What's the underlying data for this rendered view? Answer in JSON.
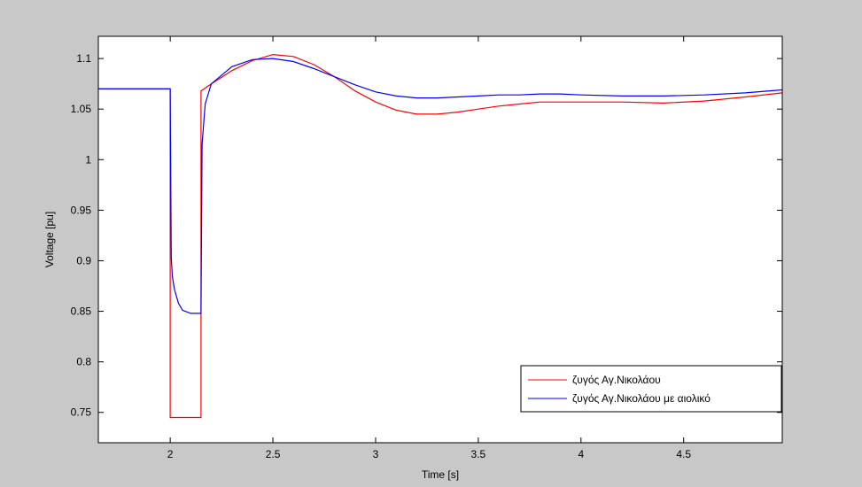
{
  "chart_data": {
    "type": "line",
    "title": "",
    "xlabel": "Time [s]",
    "ylabel": "Voltage [pu]",
    "xlim": [
      1.65,
      4.98
    ],
    "ylim": [
      0.72,
      1.122
    ],
    "x_ticks": [
      2,
      2.5,
      3,
      3.5,
      4,
      4.5
    ],
    "x_tick_labels": [
      "2",
      "2.5",
      "3",
      "3.5",
      "4",
      "4.5"
    ],
    "y_ticks": [
      0.75,
      0.8,
      0.85,
      0.9,
      0.95,
      1,
      1.05,
      1.1
    ],
    "y_tick_labels": [
      "0.75",
      "0.8",
      "0.85",
      "0.9",
      "0.95",
      "1",
      "1.05",
      "1.1"
    ],
    "grid": false,
    "legend_position": "bottom-right",
    "series": [
      {
        "name": "ζυγός Αγ.Νικολάου",
        "color": "#ff0000",
        "points": [
          [
            1.65,
            1.07
          ],
          [
            2.0,
            1.07
          ],
          [
            2.0,
            0.745
          ],
          [
            2.15,
            0.745
          ],
          [
            2.15,
            1.068
          ],
          [
            2.2,
            1.075
          ],
          [
            2.3,
            1.088
          ],
          [
            2.4,
            1.098
          ],
          [
            2.5,
            1.104
          ],
          [
            2.6,
            1.102
          ],
          [
            2.7,
            1.094
          ],
          [
            2.8,
            1.082
          ],
          [
            2.9,
            1.068
          ],
          [
            3.0,
            1.057
          ],
          [
            3.1,
            1.049
          ],
          [
            3.2,
            1.045
          ],
          [
            3.3,
            1.045
          ],
          [
            3.4,
            1.047
          ],
          [
            3.5,
            1.05
          ],
          [
            3.6,
            1.053
          ],
          [
            3.7,
            1.055
          ],
          [
            3.8,
            1.057
          ],
          [
            3.9,
            1.057
          ],
          [
            4.0,
            1.057
          ],
          [
            4.2,
            1.057
          ],
          [
            4.4,
            1.056
          ],
          [
            4.6,
            1.058
          ],
          [
            4.8,
            1.062
          ],
          [
            4.98,
            1.066
          ]
        ]
      },
      {
        "name": "ζυγός Αγ.Νικολάου με αιολικό",
        "color": "#0000ff",
        "points": [
          [
            1.65,
            1.07
          ],
          [
            2.0,
            1.07
          ],
          [
            2.005,
            0.903
          ],
          [
            2.01,
            0.885
          ],
          [
            2.02,
            0.872
          ],
          [
            2.04,
            0.858
          ],
          [
            2.06,
            0.851
          ],
          [
            2.1,
            0.848
          ],
          [
            2.15,
            0.848
          ],
          [
            2.155,
            1.015
          ],
          [
            2.17,
            1.055
          ],
          [
            2.2,
            1.075
          ],
          [
            2.3,
            1.092
          ],
          [
            2.4,
            1.099
          ],
          [
            2.5,
            1.1
          ],
          [
            2.6,
            1.097
          ],
          [
            2.7,
            1.09
          ],
          [
            2.8,
            1.082
          ],
          [
            2.9,
            1.074
          ],
          [
            3.0,
            1.067
          ],
          [
            3.1,
            1.063
          ],
          [
            3.2,
            1.061
          ],
          [
            3.3,
            1.061
          ],
          [
            3.4,
            1.062
          ],
          [
            3.5,
            1.063
          ],
          [
            3.6,
            1.064
          ],
          [
            3.7,
            1.064
          ],
          [
            3.8,
            1.065
          ],
          [
            3.9,
            1.065
          ],
          [
            4.0,
            1.064
          ],
          [
            4.2,
            1.063
          ],
          [
            4.4,
            1.063
          ],
          [
            4.6,
            1.064
          ],
          [
            4.8,
            1.066
          ],
          [
            4.98,
            1.069
          ]
        ]
      }
    ]
  }
}
